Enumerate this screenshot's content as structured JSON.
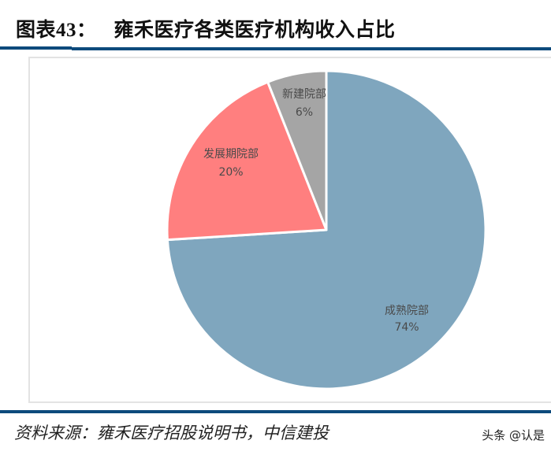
{
  "header": {
    "figure_label": "图表",
    "figure_number": "43：",
    "title": "雍禾医疗各类医疗机构收入占比"
  },
  "footer": {
    "source": "资料来源：雍禾医疗招股说明书，中信建投",
    "watermark": "头条 @认是"
  },
  "colors": {
    "rule": "#0d4a7c",
    "mature": "#7fa6be",
    "developing": "#ff7f7f",
    "new": "#a5a5a5"
  },
  "chart_data": {
    "type": "pie",
    "title": "雍禾医疗各类医疗机构收入占比",
    "categories": [
      "成熟院部",
      "发展期院部",
      "新建院部"
    ],
    "values": [
      74,
      20,
      6
    ],
    "unit": "%",
    "labels": [
      {
        "name": "成熟院部",
        "pct": "74%"
      },
      {
        "name": "发展期院部",
        "pct": "20%"
      },
      {
        "name": "新建院部",
        "pct": "6%"
      }
    ],
    "start_angle": "12 o'clock, clockwise",
    "legend": "none (data labels on slices)"
  }
}
